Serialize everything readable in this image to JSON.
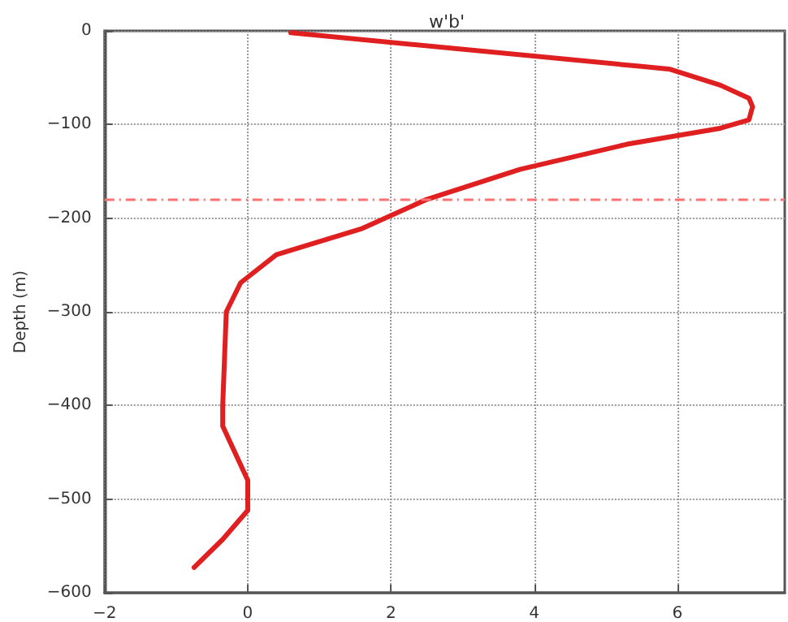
{
  "chart_data": {
    "type": "line",
    "title": "w'b'",
    "ylabel": "Depth (m)",
    "series": [
      {
        "color": "#e02020",
        "x": [
          0.6,
          5.5,
          5.9,
          6.6,
          7.0,
          7.05,
          7.0,
          6.6,
          5.3,
          3.8,
          2.5,
          1.6,
          0.4,
          -0.1,
          -0.3,
          -0.35,
          -0.35,
          0.0,
          0.0,
          -0.35,
          -0.75
        ],
        "values": [
          -2,
          -38,
          -41,
          -58,
          -72,
          -81,
          -95,
          -104,
          -121,
          -148,
          -180,
          -211,
          -239,
          -269,
          -300,
          -400,
          -422,
          -480,
          -512,
          -543,
          -573
        ]
      }
    ],
    "xlim": [
      -2,
      7.5
    ],
    "xticks": [
      -2,
      0,
      2,
      4,
      6
    ],
    "ylim": [
      -600,
      0
    ],
    "yticks": [
      -600,
      -500,
      -400,
      -300,
      -200,
      -100,
      0
    ],
    "ref_lines": [
      {
        "axis": "y",
        "value": -180,
        "color": "#ff7070",
        "line_style": "dashdot"
      }
    ],
    "grid": true,
    "marker": "none",
    "line_style": "solid"
  }
}
